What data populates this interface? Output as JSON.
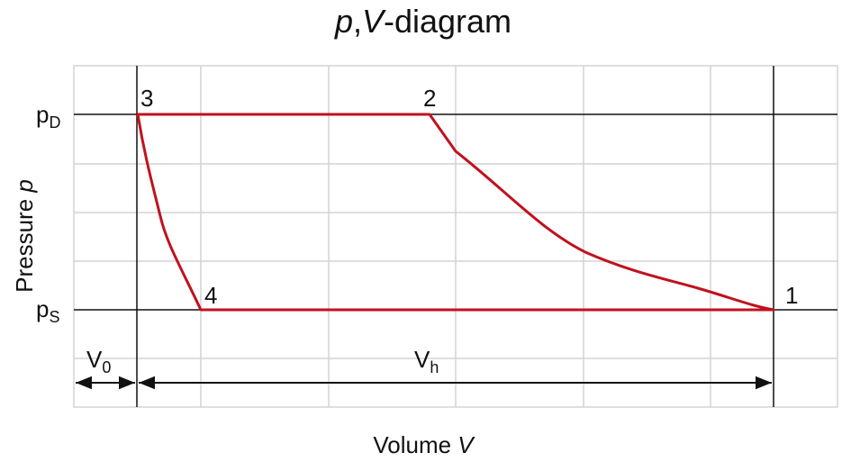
{
  "title": [
    "p",
    ",",
    "V",
    "-diagram"
  ],
  "y_axis_label": [
    "Pressure ",
    "p"
  ],
  "x_axis_label": [
    "Volume ",
    "V"
  ],
  "pressure_labels": {
    "discharge": [
      "p",
      "D"
    ],
    "suction": [
      "p",
      "S"
    ]
  },
  "volume_labels": {
    "clearance": [
      "V",
      "0"
    ],
    "stroke": [
      "V",
      "h"
    ]
  },
  "points": [
    "1",
    "2",
    "3",
    "4"
  ]
}
